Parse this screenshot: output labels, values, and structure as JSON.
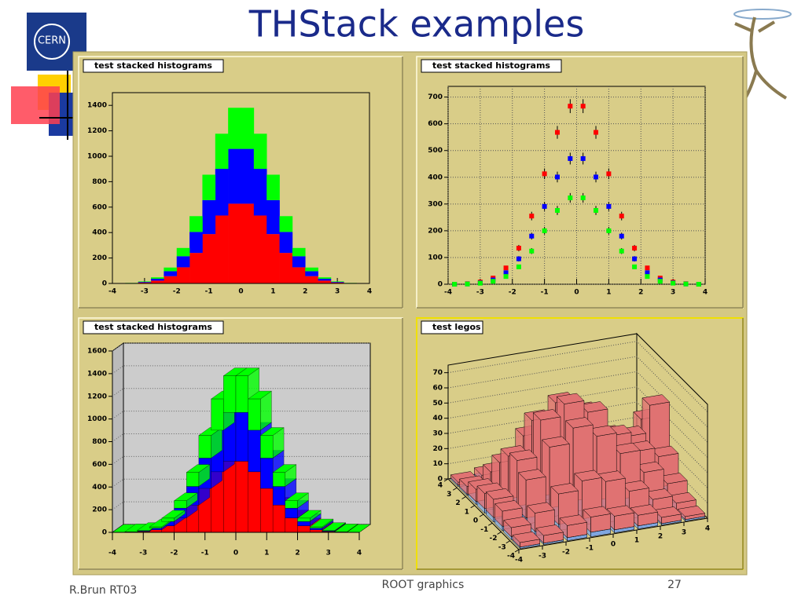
{
  "title": "THStack examples",
  "logo_text": "CERN",
  "footer": {
    "author": "R.Brun RT03",
    "topic": "ROOT graphics",
    "page": "27"
  },
  "chart_data": [
    {
      "type": "histogram",
      "title": "test stacked histograms",
      "lego": false,
      "bins": [
        -4,
        -3.6,
        -3.2,
        -2.8,
        -2.4,
        -2,
        -1.6,
        -1.2,
        -0.8,
        -0.4,
        0,
        0.4,
        0.8,
        1.2,
        1.6,
        2,
        2.4,
        2.8,
        3.2,
        3.6,
        4
      ],
      "series": [
        {
          "color": "#ff0000",
          "values": [
            0,
            2,
            7,
            22,
            57,
            127,
            240,
            388,
            534,
            627,
            627,
            534,
            388,
            240,
            127,
            57,
            22,
            7,
            2,
            0
          ]
        },
        {
          "color": "#0000ff",
          "values": [
            0,
            1,
            5,
            15,
            39,
            87,
            165,
            267,
            367,
            431,
            431,
            367,
            267,
            165,
            87,
            39,
            15,
            5,
            1,
            0
          ]
        },
        {
          "color": "#00ff00",
          "values": [
            0,
            1,
            4,
            11,
            29,
            65,
            124,
            200,
            276,
            323,
            323,
            276,
            200,
            124,
            65,
            29,
            11,
            4,
            1,
            0
          ]
        }
      ],
      "xlim": [
        -4,
        4
      ],
      "xticks": [
        -4,
        -3,
        -2,
        -1,
        0,
        1,
        2,
        3,
        4
      ],
      "ylim": [
        0,
        1500
      ],
      "yticks": [
        0,
        200,
        400,
        600,
        800,
        1000,
        1200,
        1400
      ],
      "grid": false
    },
    {
      "type": "scatter",
      "title": "test stacked histograms",
      "x": [
        -3.8,
        -3.4,
        -3,
        -2.6,
        -2.2,
        -1.8,
        -1.4,
        -1,
        -0.6,
        -0.2,
        0.2,
        0.6,
        1,
        1.4,
        1.8,
        2.2,
        2.6,
        3,
        3.4,
        3.8
      ],
      "series": [
        {
          "color": "#ff0000",
          "values": [
            0,
            2,
            8,
            23,
            61,
            135,
            255,
            413,
            568,
            666,
            666,
            568,
            413,
            255,
            135,
            61,
            23,
            8,
            2,
            0
          ],
          "errors": [
            1,
            1,
            3,
            5,
            8,
            12,
            16,
            20,
            24,
            26,
            26,
            24,
            20,
            16,
            12,
            8,
            5,
            3,
            1,
            1
          ]
        },
        {
          "color": "#0000ff",
          "values": [
            0,
            1,
            5,
            16,
            43,
            95,
            180,
            291,
            401,
            470,
            470,
            401,
            291,
            180,
            95,
            43,
            16,
            5,
            1,
            0
          ],
          "errors": [
            1,
            1,
            2,
            4,
            7,
            10,
            13,
            17,
            20,
            22,
            22,
            20,
            17,
            13,
            10,
            7,
            4,
            2,
            1,
            1
          ]
        },
        {
          "color": "#00ff00",
          "values": [
            0,
            1,
            4,
            11,
            29,
            65,
            124,
            200,
            276,
            323,
            323,
            276,
            200,
            124,
            65,
            29,
            11,
            4,
            1,
            0
          ],
          "errors": [
            1,
            1,
            2,
            3,
            5,
            8,
            11,
            14,
            17,
            18,
            18,
            17,
            14,
            11,
            8,
            5,
            3,
            2,
            1,
            1
          ]
        }
      ],
      "xlim": [
        -4,
        4
      ],
      "xticks": [
        -4,
        -3,
        -2,
        -1,
        0,
        1,
        2,
        3,
        4
      ],
      "ylim": [
        0,
        740
      ],
      "yticks": [
        0,
        100,
        200,
        300,
        400,
        500,
        600,
        700
      ],
      "grid": true
    },
    {
      "type": "histogram",
      "title": "test stacked histograms",
      "lego": true,
      "bins": [
        -4,
        -3.6,
        -3.2,
        -2.8,
        -2.4,
        -2,
        -1.6,
        -1.2,
        -0.8,
        -0.4,
        0,
        0.4,
        0.8,
        1.2,
        1.6,
        2,
        2.4,
        2.8,
        3.2,
        3.6,
        4
      ],
      "series": [
        {
          "color": "#ff0000",
          "values": [
            0,
            2,
            7,
            22,
            57,
            127,
            240,
            388,
            534,
            627,
            627,
            534,
            388,
            240,
            127,
            57,
            22,
            7,
            2,
            0
          ]
        },
        {
          "color": "#0000ff",
          "values": [
            0,
            1,
            5,
            15,
            39,
            87,
            165,
            267,
            367,
            431,
            431,
            367,
            267,
            165,
            87,
            39,
            15,
            5,
            1,
            0
          ]
        },
        {
          "color": "#00ff00",
          "values": [
            0,
            1,
            4,
            11,
            29,
            65,
            124,
            200,
            276,
            323,
            323,
            276,
            200,
            124,
            65,
            29,
            11,
            4,
            1,
            0
          ]
        }
      ],
      "xlim": [
        -4,
        4
      ],
      "xticks": [
        -4,
        -3,
        -2,
        -1,
        0,
        1,
        2,
        3,
        4
      ],
      "ylim": [
        0,
        1600
      ],
      "yticks": [
        0,
        200,
        400,
        600,
        800,
        1000,
        1200,
        1400,
        1600
      ],
      "grid": true
    },
    {
      "type": "lego",
      "title": "test legos",
      "xbins": [
        -4,
        -3,
        -2,
        -1,
        0,
        1,
        2,
        3,
        4
      ],
      "ybins": [
        -4,
        -3,
        -2,
        -1,
        0,
        1,
        2,
        3,
        4
      ],
      "series": [
        {
          "color": "#7fa6e0",
          "values": [
            [
              1,
              1,
              2,
              3,
              2,
              2,
              1,
              1
            ],
            [
              2,
              3,
              5,
              6,
              6,
              4,
              2,
              1
            ],
            [
              3,
              6,
              10,
              12,
              10,
              8,
              5,
              3
            ],
            [
              3,
              8,
              12,
              14,
              12,
              9,
              6,
              5
            ],
            [
              3,
              7,
              11,
              13,
              11,
              8,
              7,
              11
            ],
            [
              2,
              5,
              8,
              10,
              8,
              6,
              5,
              8
            ],
            [
              1,
              3,
              4,
              5,
              4,
              3,
              3,
              3
            ],
            [
              1,
              1,
              2,
              2,
              2,
              2,
              1,
              1
            ]
          ]
        },
        {
          "color": "#e07272",
          "values": [
            [
              3,
              5,
              8,
              10,
              9,
              7,
              4,
              2
            ],
            [
              6,
              12,
              20,
              25,
              22,
              15,
              9,
              5
            ],
            [
              10,
              25,
              40,
              48,
              42,
              30,
              18,
              10
            ],
            [
              12,
              30,
              50,
              56,
              50,
              35,
              25,
              20
            ],
            [
              10,
              28,
              45,
              52,
              45,
              30,
              28,
              42
            ],
            [
              8,
              20,
              32,
              38,
              32,
              22,
              20,
              30
            ],
            [
              5,
              10,
              16,
              20,
              17,
              12,
              10,
              12
            ],
            [
              2,
              4,
              7,
              9,
              8,
              6,
              4,
              3
            ]
          ]
        }
      ],
      "xlim": [
        -4,
        4
      ],
      "xticks": [
        -4,
        -3,
        -2,
        -1,
        0,
        1,
        2,
        3,
        4
      ],
      "ylim": [
        -4,
        4
      ],
      "yticks": [
        -4,
        -3,
        -2,
        -1,
        0,
        1,
        2,
        3,
        4
      ],
      "zlim": [
        0,
        75
      ],
      "zticks": [
        0,
        10,
        20,
        30,
        40,
        50,
        60,
        70
      ],
      "grid": true
    }
  ]
}
